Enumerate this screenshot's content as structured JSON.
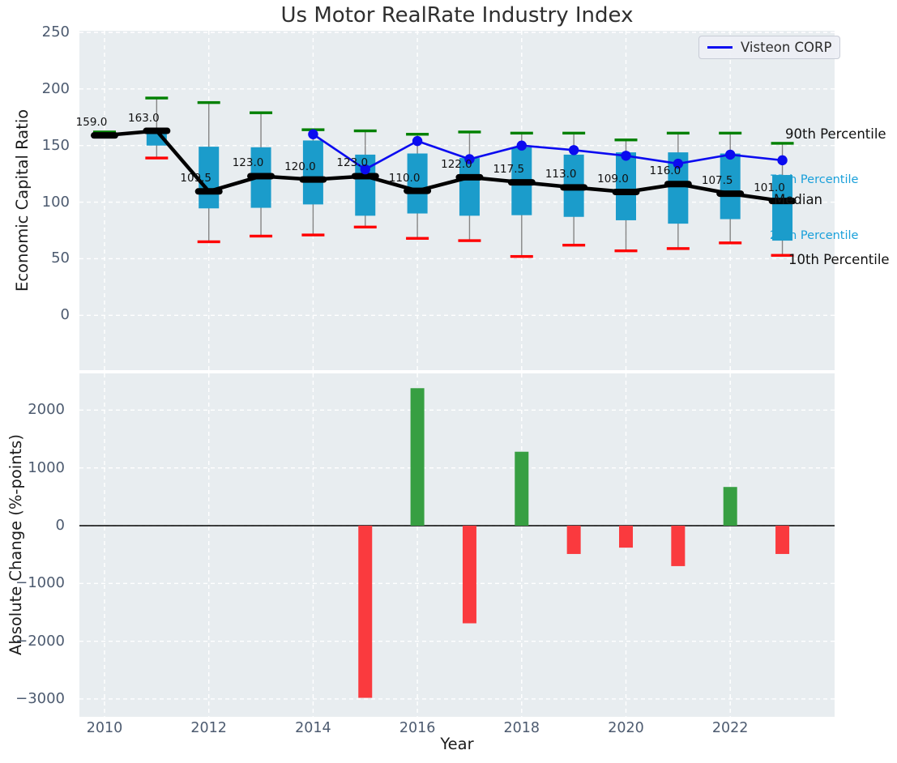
{
  "title": "Us Motor RealRate Industry Index",
  "legend": {
    "label": "Visteon CORP"
  },
  "axes": {
    "top_ylabel": "Economic Capital Ratio",
    "bottom_ylabel": "Absolute Change (%-points)",
    "xlabel": "Year"
  },
  "annotations": {
    "p90": "90th Percentile",
    "p75": "75th Percentile",
    "median": "Median",
    "p25": "25th Percentile",
    "p10": "10th Percentile"
  },
  "colors": {
    "box": "#1b9ccb",
    "p90_tick": "#008000",
    "p10_tick": "#ff0000",
    "median_line": "#000000",
    "visteon_line": "#0b0bf0",
    "whisker": "#858585",
    "bar_positive": "#379f42",
    "bar_negative": "#fa3a3e",
    "plot_bg": "#e8edf0",
    "grid": "#ffffff",
    "tick_label": "#4d5b70",
    "percentile_label_cyan": "#1aa0da"
  },
  "chart_data": [
    {
      "type": "line",
      "title": "Us Motor RealRate Industry Index",
      "xlabel": "Year",
      "ylabel": "Economic Capital Ratio",
      "x": [
        2010,
        2011,
        2012,
        2013,
        2014,
        2015,
        2016,
        2017,
        2018,
        2019,
        2020,
        2021,
        2022,
        2023
      ],
      "ylim": [
        -49,
        251
      ],
      "xlim": [
        2009.5,
        2024
      ],
      "yticks": [
        0,
        50,
        100,
        150,
        200,
        250
      ],
      "xticks": [
        2010,
        2012,
        2014,
        2016,
        2018,
        2020,
        2022
      ],
      "grid": true,
      "legend_position": "upper right",
      "series": [
        {
          "name": "Median",
          "style": "thick-line-with-dash-markers",
          "color": "#000000",
          "values": [
            159,
            163,
            109.5,
            123,
            120,
            123,
            110,
            122,
            117.5,
            113,
            109,
            116,
            107.5,
            101
          ],
          "labels": [
            "159.0",
            "163.0",
            "109.5",
            "123.0",
            "120.0",
            "123.0",
            "110.0",
            "122.0",
            "117.5",
            "113.0",
            "109.0",
            "116.0",
            "107.5",
            "101.0"
          ]
        },
        {
          "name": "Visteon CORP",
          "style": "line-with-dots",
          "color": "#0b0bf0",
          "values": [
            null,
            null,
            null,
            null,
            160,
            129,
            154,
            138,
            150,
            146,
            141,
            134,
            142,
            137
          ]
        },
        {
          "name": "90th Percentile",
          "style": "horizontal-tick",
          "color": "#008000",
          "values": [
            162,
            192,
            188,
            179,
            164,
            163,
            160,
            162,
            161,
            161,
            155,
            161,
            161,
            152
          ]
        },
        {
          "name": "75th Percentile",
          "style": "box-top",
          "color": "#1b9ccb",
          "values": [
            161,
            165,
            149,
            148.5,
            154.5,
            142,
            143,
            139,
            148.5,
            142,
            144,
            144,
            143,
            124
          ]
        },
        {
          "name": "25th Percentile",
          "style": "box-bottom",
          "color": "#1b9ccb",
          "values": [
            157,
            150,
            94.5,
            95,
            98,
            88,
            90,
            88,
            88.5,
            87,
            84,
            81,
            85,
            66
          ]
        },
        {
          "name": "10th Percentile",
          "style": "horizontal-tick",
          "color": "#ff0000",
          "values": [
            null,
            139,
            65,
            70,
            71,
            78,
            68,
            66,
            52,
            62,
            57,
            59,
            64,
            53
          ]
        }
      ]
    },
    {
      "type": "bar",
      "xlabel": "Year",
      "ylabel": "Absolute Change (%-points)",
      "x": [
        2010,
        2011,
        2012,
        2013,
        2014,
        2015,
        2016,
        2017,
        2018,
        2019,
        2020,
        2021,
        2022,
        2023
      ],
      "values": [
        null,
        null,
        null,
        null,
        null,
        -2980,
        2380,
        -1690,
        1280,
        -490,
        -380,
        -700,
        670,
        -490
      ],
      "ylim": [
        -3310,
        2640
      ],
      "yticks": [
        2000,
        1000,
        0,
        -1000,
        -2000,
        -3000
      ],
      "xticks": [
        2010,
        2012,
        2014,
        2016,
        2018,
        2020,
        2022
      ],
      "grid": true,
      "zero_line": true
    }
  ]
}
